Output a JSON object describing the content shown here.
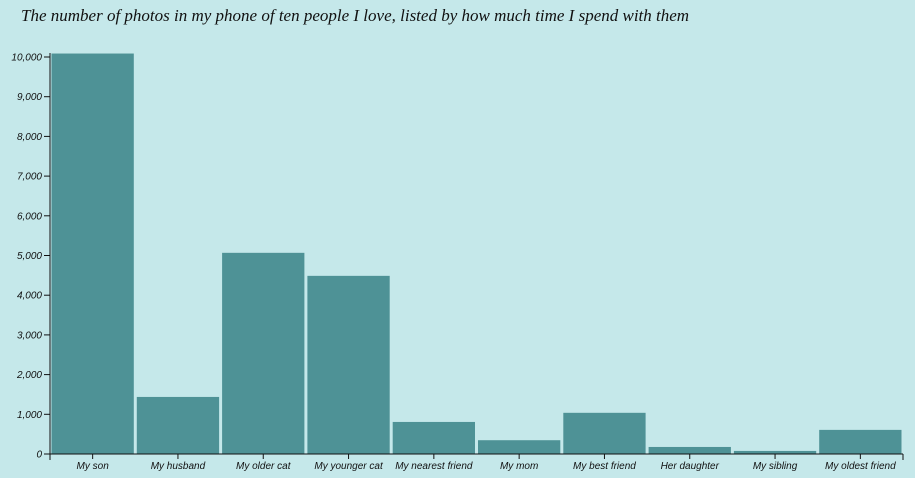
{
  "chart_data": {
    "type": "bar",
    "title": "The number of photos in my phone of ten people I love, listed by how much time I spend with them",
    "xlabel": "",
    "ylabel": "",
    "categories": [
      "My son",
      "My husband",
      "My older cat",
      "My younger cat",
      "My nearest friend",
      "My mom",
      "My best friend",
      "Her daughter",
      "My sibling",
      "My oldest friend"
    ],
    "values": [
      10100,
      1450,
      5080,
      4500,
      820,
      360,
      1050,
      190,
      90,
      620
    ],
    "ylim": [
      0,
      10000
    ],
    "yticks": [
      0,
      1000,
      2000,
      3000,
      4000,
      5000,
      6000,
      7000,
      8000,
      9000,
      10000
    ],
    "ytick_labels": [
      "0",
      "1,000",
      "2,000",
      "3,000",
      "4,000",
      "5,000",
      "6,000",
      "7,000",
      "8,000",
      "9,000",
      "10,000"
    ],
    "grid": false,
    "colors": {
      "bar": "#4e9296",
      "bar_stroke": "#c5e8ea",
      "background": "#c5e8ea",
      "axis": "#111111"
    }
  }
}
